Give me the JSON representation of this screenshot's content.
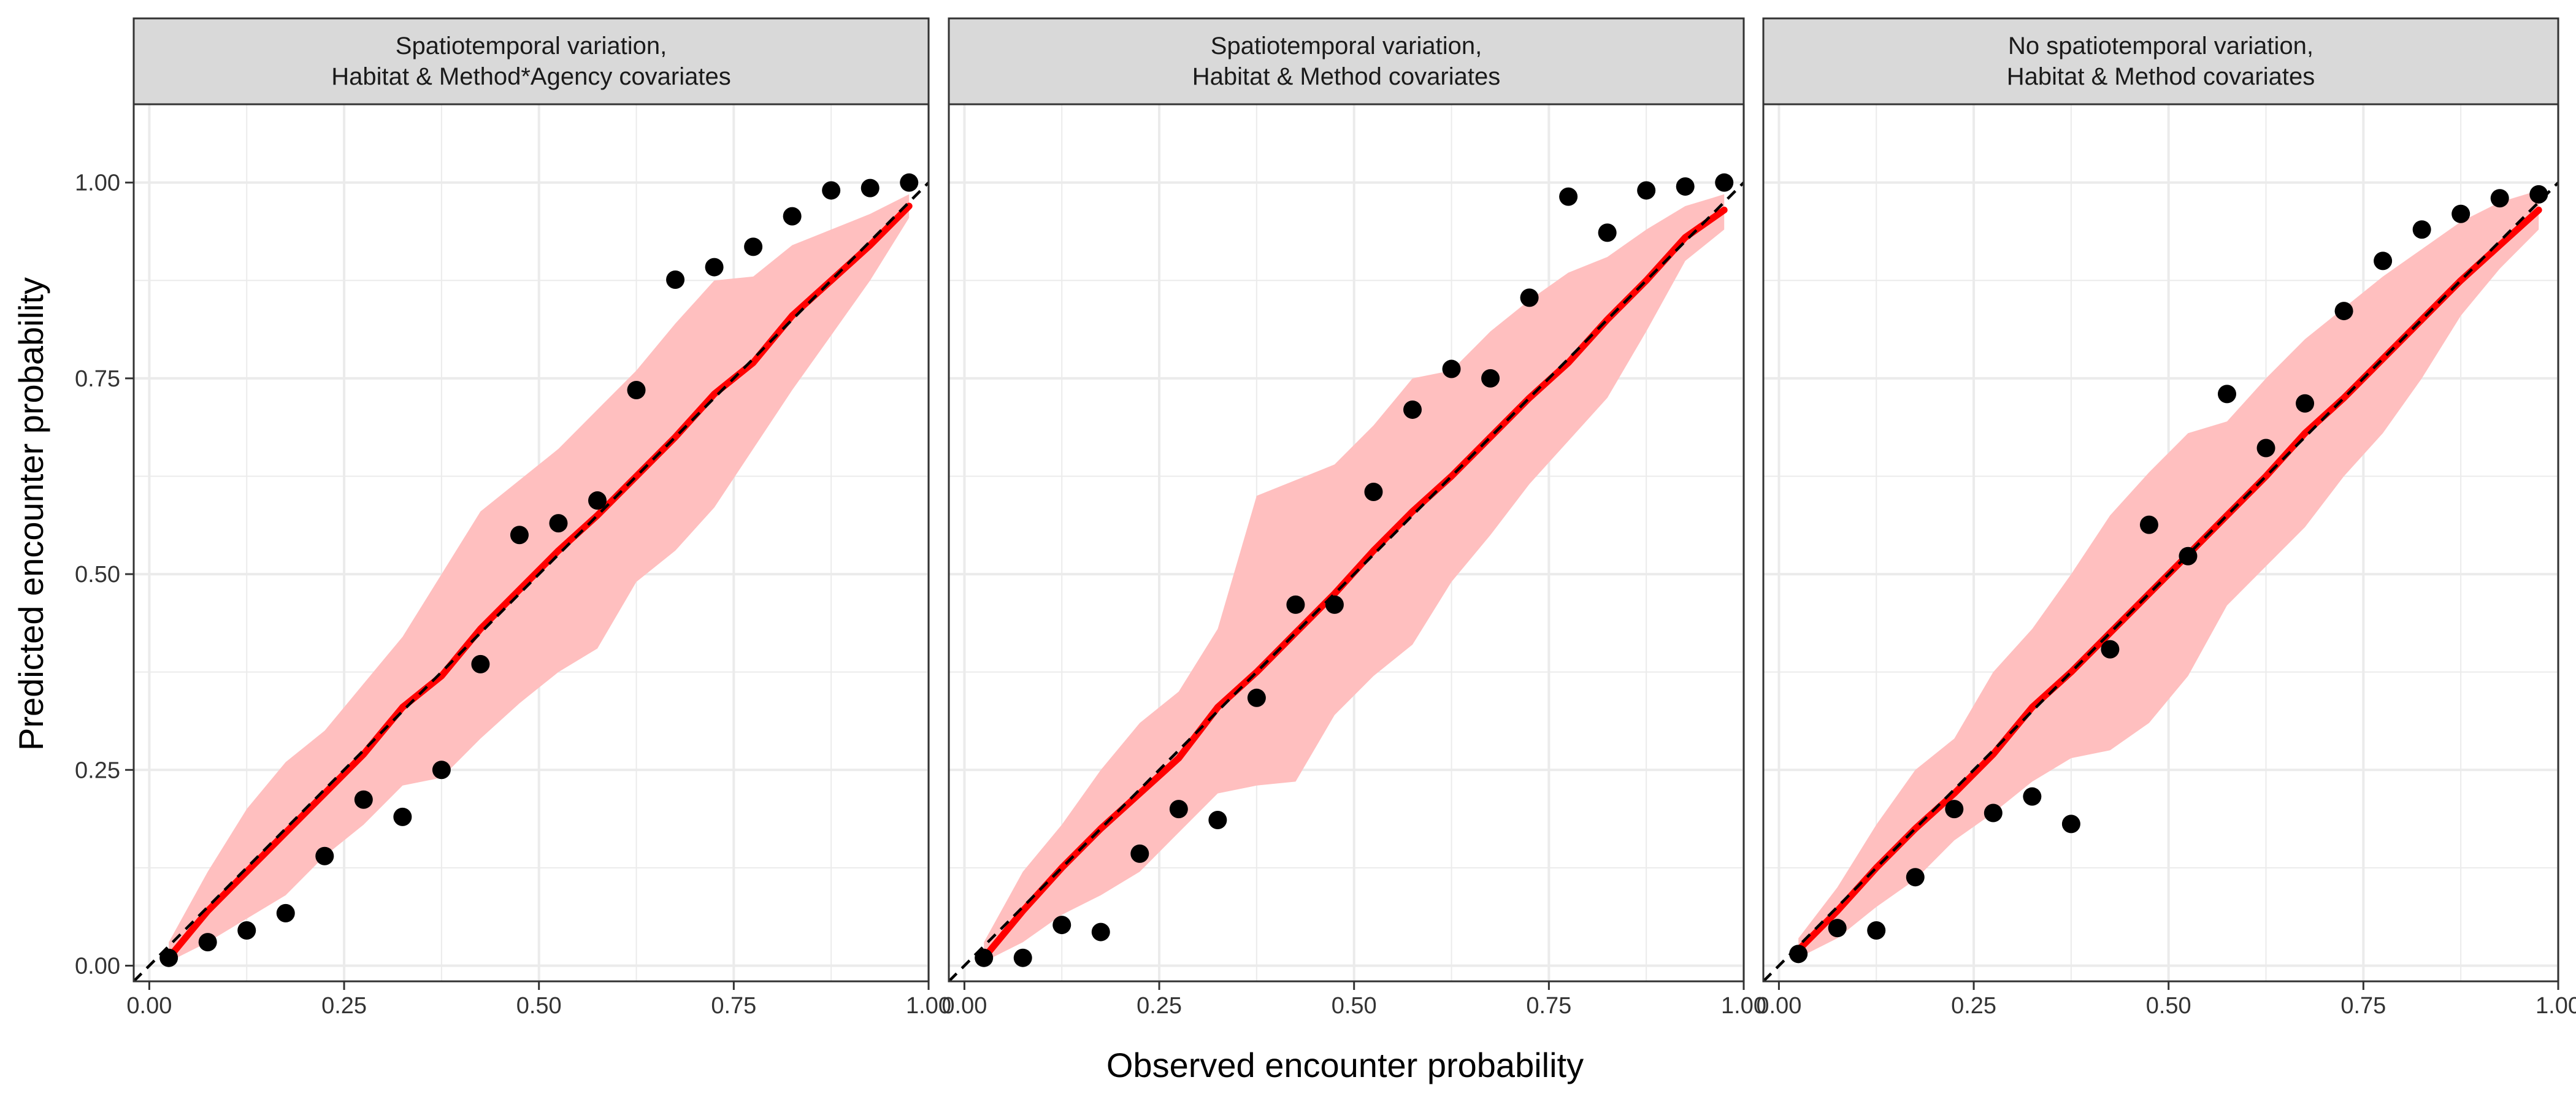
{
  "chart_data": {
    "type": "scatter",
    "xlabel": "Observed encounter probability",
    "ylabel": "Predicted encounter probability",
    "xlim": [
      -0.02,
      1.0
    ],
    "ylim": [
      -0.02,
      1.1
    ],
    "x_ticks": [
      0.0,
      0.25,
      0.5,
      0.75,
      1.0
    ],
    "y_ticks": [
      0.0,
      0.25,
      0.5,
      0.75,
      1.0
    ],
    "tick_labels": [
      "0.00",
      "0.25",
      "0.50",
      "0.75",
      "1.00"
    ],
    "grid": true,
    "reference_line": "dashed black 1:1 identity line",
    "colors": {
      "points": "#000000",
      "mean_line": "#ff0000",
      "ribbon": "#ffbfbf",
      "strip_background": "#d9d9d9",
      "grid": "#ebebeb"
    },
    "panels": [
      {
        "strip_title": [
          "Spatiotemporal variation,",
          "Habitat & Method*Agency covariates"
        ],
        "points": {
          "x": [
            0.025,
            0.075,
            0.125,
            0.175,
            0.225,
            0.275,
            0.325,
            0.375,
            0.425,
            0.475,
            0.525,
            0.575,
            0.625,
            0.675,
            0.725,
            0.775,
            0.825,
            0.875,
            0.925,
            0.975
          ],
          "y": [
            0.01,
            0.03,
            0.045,
            0.067,
            0.14,
            0.212,
            0.19,
            0.25,
            0.385,
            0.55,
            0.565,
            0.594,
            0.735,
            0.876,
            0.892,
            0.918,
            0.957,
            0.99,
            0.993,
            1.0
          ]
        },
        "mean_line": {
          "x": [
            0.025,
            0.075,
            0.125,
            0.175,
            0.225,
            0.275,
            0.325,
            0.375,
            0.425,
            0.475,
            0.525,
            0.575,
            0.625,
            0.675,
            0.725,
            0.775,
            0.825,
            0.875,
            0.925,
            0.975
          ],
          "y": [
            0.01,
            0.07,
            0.12,
            0.17,
            0.22,
            0.27,
            0.33,
            0.37,
            0.43,
            0.48,
            0.53,
            0.575,
            0.625,
            0.675,
            0.73,
            0.77,
            0.83,
            0.875,
            0.92,
            0.97
          ]
        },
        "ribbon": {
          "x": [
            0.025,
            0.075,
            0.125,
            0.175,
            0.225,
            0.275,
            0.325,
            0.375,
            0.425,
            0.475,
            0.525,
            0.575,
            0.625,
            0.675,
            0.725,
            0.775,
            0.825,
            0.875,
            0.925,
            0.975
          ],
          "lower": [
            0.005,
            0.03,
            0.06,
            0.09,
            0.14,
            0.18,
            0.23,
            0.24,
            0.29,
            0.335,
            0.375,
            0.405,
            0.49,
            0.53,
            0.585,
            0.66,
            0.735,
            0.805,
            0.875,
            0.955
          ],
          "upper": [
            0.03,
            0.12,
            0.2,
            0.26,
            0.3,
            0.36,
            0.42,
            0.5,
            0.58,
            0.62,
            0.66,
            0.71,
            0.76,
            0.82,
            0.875,
            0.88,
            0.92,
            0.94,
            0.96,
            0.985
          ]
        }
      },
      {
        "strip_title": [
          "Spatiotemporal variation,",
          "Habitat & Method covariates"
        ],
        "points": {
          "x": [
            0.025,
            0.075,
            0.125,
            0.175,
            0.225,
            0.275,
            0.325,
            0.375,
            0.425,
            0.475,
            0.525,
            0.575,
            0.625,
            0.675,
            0.725,
            0.775,
            0.825,
            0.875,
            0.925,
            0.975
          ],
          "y": [
            0.01,
            0.01,
            0.052,
            0.043,
            0.143,
            0.2,
            0.186,
            0.342,
            0.461,
            0.461,
            0.605,
            0.71,
            0.762,
            0.75,
            0.853,
            0.982,
            0.936,
            0.99,
            0.995,
            1.0
          ]
        },
        "mean_line": {
          "x": [
            0.025,
            0.075,
            0.125,
            0.175,
            0.225,
            0.275,
            0.325,
            0.375,
            0.425,
            0.475,
            0.525,
            0.575,
            0.625,
            0.675,
            0.725,
            0.775,
            0.825,
            0.875,
            0.925,
            0.975
          ],
          "y": [
            0.01,
            0.07,
            0.125,
            0.175,
            0.22,
            0.265,
            0.33,
            0.375,
            0.425,
            0.475,
            0.53,
            0.58,
            0.625,
            0.675,
            0.725,
            0.77,
            0.825,
            0.875,
            0.93,
            0.965
          ]
        },
        "ribbon": {
          "x": [
            0.025,
            0.075,
            0.125,
            0.175,
            0.225,
            0.275,
            0.325,
            0.375,
            0.425,
            0.475,
            0.525,
            0.575,
            0.625,
            0.675,
            0.725,
            0.775,
            0.825,
            0.875,
            0.925,
            0.975
          ],
          "lower": [
            0.005,
            0.03,
            0.065,
            0.09,
            0.12,
            0.17,
            0.22,
            0.23,
            0.235,
            0.32,
            0.37,
            0.41,
            0.49,
            0.55,
            0.615,
            0.67,
            0.725,
            0.81,
            0.9,
            0.94
          ],
          "upper": [
            0.03,
            0.12,
            0.18,
            0.25,
            0.31,
            0.35,
            0.43,
            0.6,
            0.62,
            0.64,
            0.69,
            0.75,
            0.76,
            0.81,
            0.85,
            0.885,
            0.905,
            0.94,
            0.97,
            0.985
          ]
        }
      },
      {
        "strip_title": [
          "No spatiotemporal variation,",
          "Habitat & Method covariates"
        ],
        "points": {
          "x": [
            0.025,
            0.075,
            0.125,
            0.175,
            0.225,
            0.275,
            0.325,
            0.375,
            0.425,
            0.475,
            0.525,
            0.575,
            0.625,
            0.675,
            0.725,
            0.775,
            0.825,
            0.875,
            0.925,
            0.975
          ],
          "y": [
            0.015,
            0.048,
            0.045,
            0.113,
            0.2,
            0.195,
            0.216,
            0.181,
            0.404,
            0.563,
            0.523,
            0.73,
            0.661,
            0.718,
            0.836,
            0.9,
            0.94,
            0.96,
            0.98,
            0.985
          ]
        },
        "mean_line": {
          "x": [
            0.025,
            0.075,
            0.125,
            0.175,
            0.225,
            0.275,
            0.325,
            0.375,
            0.425,
            0.475,
            0.525,
            0.575,
            0.625,
            0.675,
            0.725,
            0.775,
            0.825,
            0.875,
            0.925,
            0.975
          ],
          "y": [
            0.02,
            0.07,
            0.125,
            0.175,
            0.22,
            0.27,
            0.33,
            0.375,
            0.425,
            0.475,
            0.525,
            0.575,
            0.625,
            0.68,
            0.725,
            0.775,
            0.825,
            0.875,
            0.92,
            0.965
          ]
        },
        "ribbon": {
          "x": [
            0.025,
            0.075,
            0.125,
            0.175,
            0.225,
            0.275,
            0.325,
            0.375,
            0.425,
            0.475,
            0.525,
            0.575,
            0.625,
            0.675,
            0.725,
            0.775,
            0.825,
            0.875,
            0.925,
            0.975
          ],
          "lower": [
            0.01,
            0.035,
            0.075,
            0.11,
            0.16,
            0.195,
            0.235,
            0.265,
            0.275,
            0.31,
            0.37,
            0.46,
            0.51,
            0.56,
            0.625,
            0.68,
            0.75,
            0.83,
            0.89,
            0.94
          ],
          "upper": [
            0.035,
            0.1,
            0.18,
            0.25,
            0.29,
            0.375,
            0.43,
            0.5,
            0.575,
            0.63,
            0.68,
            0.695,
            0.75,
            0.8,
            0.84,
            0.88,
            0.915,
            0.95,
            0.975,
            0.99
          ]
        }
      }
    ]
  }
}
